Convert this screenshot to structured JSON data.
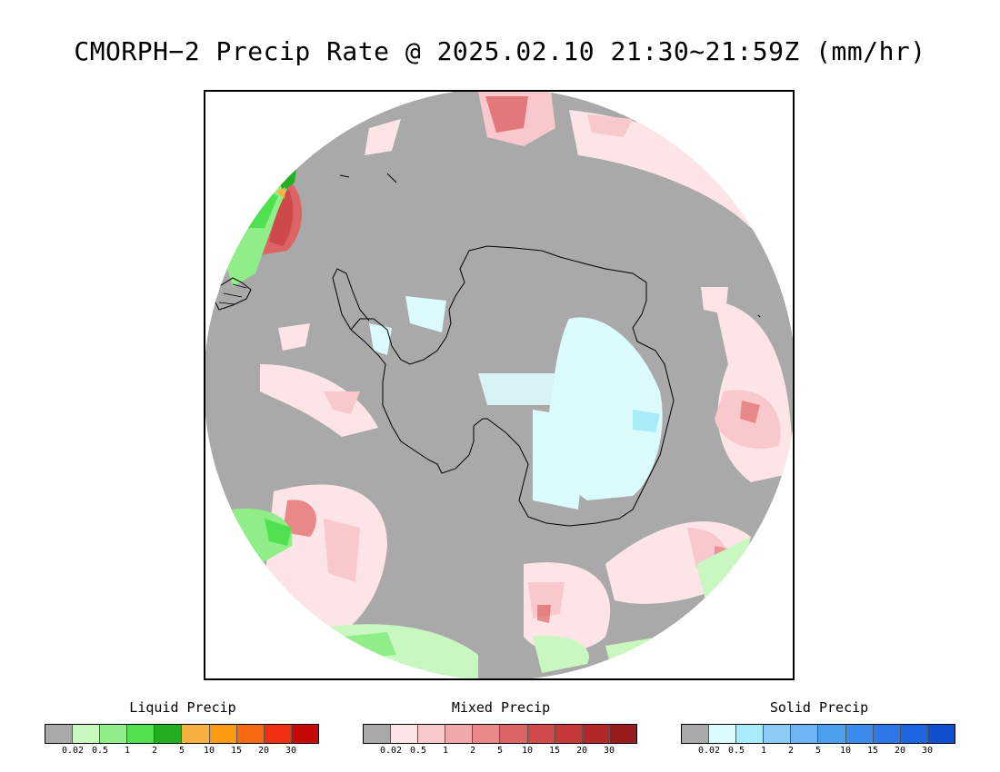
{
  "title": "CMORPH−2 Precip Rate @ 2025.02.10 21:30~21:59Z (mm/hr)",
  "map": {
    "projection": "south-polar-stereographic",
    "region": "Antarctica",
    "colors": {
      "ocean_no_precip": "#a9a9a9",
      "outside": "#ffffff",
      "coastline": "#000000"
    }
  },
  "legends": [
    {
      "title": "Liquid Precip",
      "colors": [
        "#a9a9a9",
        "#c8f8c0",
        "#90ee88",
        "#50e050",
        "#22b022",
        "#f8b040",
        "#f89a10",
        "#f86a10",
        "#f03010",
        "#c80808"
      ],
      "ticks": [
        "0.02",
        "0.5",
        "1",
        "2",
        "5",
        "10",
        "15",
        "20",
        "30"
      ]
    },
    {
      "title": "Mixed Precip",
      "colors": [
        "#a9a9a9",
        "#fde4e6",
        "#f8c8cc",
        "#f0a8ac",
        "#e88888",
        "#dc6464",
        "#d04a4a",
        "#c43838",
        "#b02828",
        "#981c1c"
      ],
      "ticks": [
        "0.02",
        "0.5",
        "1",
        "2",
        "5",
        "10",
        "15",
        "20",
        "30"
      ]
    },
    {
      "title": "Solid Precip",
      "colors": [
        "#a9a9a9",
        "#dcfbfe",
        "#a8ecfa",
        "#8ccaf6",
        "#6cb4f2",
        "#4c9eee",
        "#3c8cee",
        "#2c78e8",
        "#1c64e0",
        "#0c50d0"
      ],
      "ticks": [
        "0.02",
        "0.5",
        "1",
        "2",
        "5",
        "10",
        "15",
        "20",
        "30"
      ]
    }
  ]
}
